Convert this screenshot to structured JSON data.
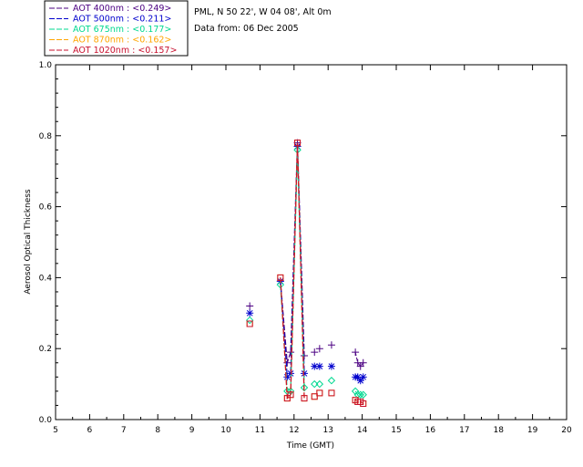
{
  "chart_data": {
    "type": "line",
    "info_lines": [
      "PML, N 50 22', W 04 08', Alt 0m",
      "Data from: 06 Dec 2005"
    ],
    "xlabel": "Time (GMT)",
    "ylabel": "Aerosol Optical Thickness",
    "xlim": [
      5,
      20
    ],
    "ylim": [
      0,
      1
    ],
    "xticks": [
      5,
      6,
      7,
      8,
      9,
      10,
      11,
      12,
      13,
      14,
      15,
      16,
      17,
      18,
      19,
      20
    ],
    "yticks": [
      "0.0",
      "0.2",
      "0.4",
      "0.6",
      "0.8",
      "1.0"
    ],
    "x": [
      10.7,
      11.6,
      11.8,
      11.9,
      12.1,
      12.3,
      12.6,
      12.75,
      13.1,
      13.8,
      13.87,
      13.95,
      14.03
    ],
    "series": [
      {
        "name": "AOT  400nm",
        "legend": "AOT  400nm : <0.249>",
        "color": "#4b0082",
        "marker": "plus",
        "values": [
          0.32,
          0.39,
          0.16,
          0.19,
          0.78,
          0.18,
          0.19,
          0.2,
          0.21,
          0.19,
          0.16,
          0.15,
          0.16
        ]
      },
      {
        "name": "AOT  500nm",
        "legend": "AOT  500nm : <0.211>",
        "color": "#0000cd",
        "marker": "star",
        "values": [
          0.3,
          0.39,
          0.12,
          0.13,
          0.77,
          0.13,
          0.15,
          0.15,
          0.15,
          0.12,
          0.12,
          0.11,
          0.12
        ]
      },
      {
        "name": "AOT  675nm",
        "legend": "AOT  675nm : <0.177>",
        "color": "#00d890",
        "marker": "diamond",
        "values": [
          0.28,
          0.38,
          0.08,
          0.08,
          0.76,
          0.09,
          0.1,
          0.1,
          0.11,
          0.08,
          0.07,
          0.07,
          0.07
        ]
      },
      {
        "name": "AOT  870nm",
        "legend": "AOT  870nm : <0.162>",
        "color": "#ffa500",
        "marker": "square",
        "values": [
          0.27,
          0.4,
          0.06,
          0.07,
          0.78,
          0.06,
          0.065,
          0.075,
          0.075,
          0.055,
          0.05,
          0.05,
          0.045
        ]
      },
      {
        "name": "AOT 1020nm",
        "legend": "AOT 1020nm : <0.157>",
        "color": "#c8102e",
        "marker": "square",
        "values": [
          0.27,
          0.4,
          0.06,
          0.07,
          0.78,
          0.06,
          0.065,
          0.075,
          0.075,
          0.055,
          0.05,
          0.05,
          0.045
        ]
      }
    ]
  }
}
